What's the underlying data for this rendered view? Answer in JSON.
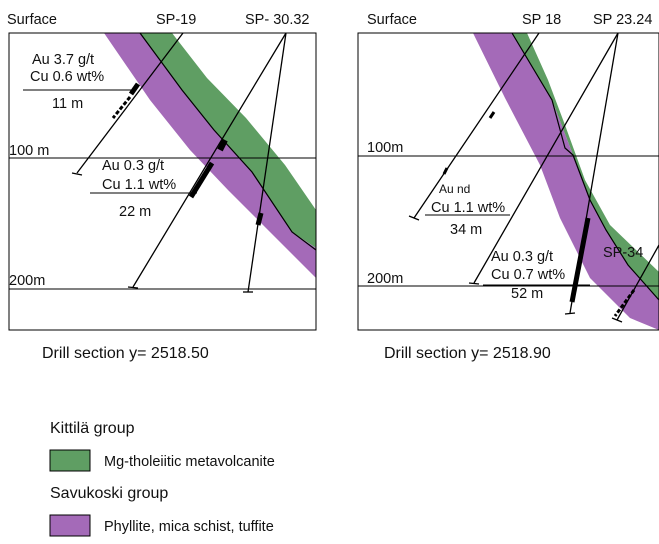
{
  "colors": {
    "green_unit": "#5f9e63",
    "purple_unit": "#a46ab8",
    "line": "#000000"
  },
  "sections": [
    {
      "caption": "Drill section y= 2518.50",
      "surface_label": "Surface",
      "depth_labels": [
        "100 m",
        "200m"
      ],
      "hole_labels": [
        "SP-19",
        "SP- 30.32"
      ],
      "intercepts": [
        {
          "au": "Au 3.7 g/t",
          "cu": "Cu 0.6 wt%",
          "length": "11 m"
        },
        {
          "au": "Au 0.3 g/t",
          "cu": "Cu 1.1 wt%",
          "length": "22 m"
        }
      ]
    },
    {
      "caption": "Drill section y= 2518.90",
      "surface_label": "Surface",
      "depth_labels": [
        "100m",
        "200m"
      ],
      "hole_labels": [
        "SP 18",
        "SP 23.24",
        "SP-34"
      ],
      "intercepts": [
        {
          "au": "Au nd",
          "cu": "Cu 1.1 wt%",
          "length": "34 m"
        },
        {
          "au": "Au 0.3 g/t",
          "cu": "Cu 0.7 wt%",
          "length": "52 m"
        }
      ]
    }
  ],
  "legend": {
    "groups": [
      {
        "name": "Kittilä group",
        "item": "Mg-tholeiitic metavolcanite",
        "swatch": "green"
      },
      {
        "name": "Savukoski group",
        "item": "Phyllite, mica schist, tuffite",
        "swatch": "purple"
      }
    ]
  }
}
